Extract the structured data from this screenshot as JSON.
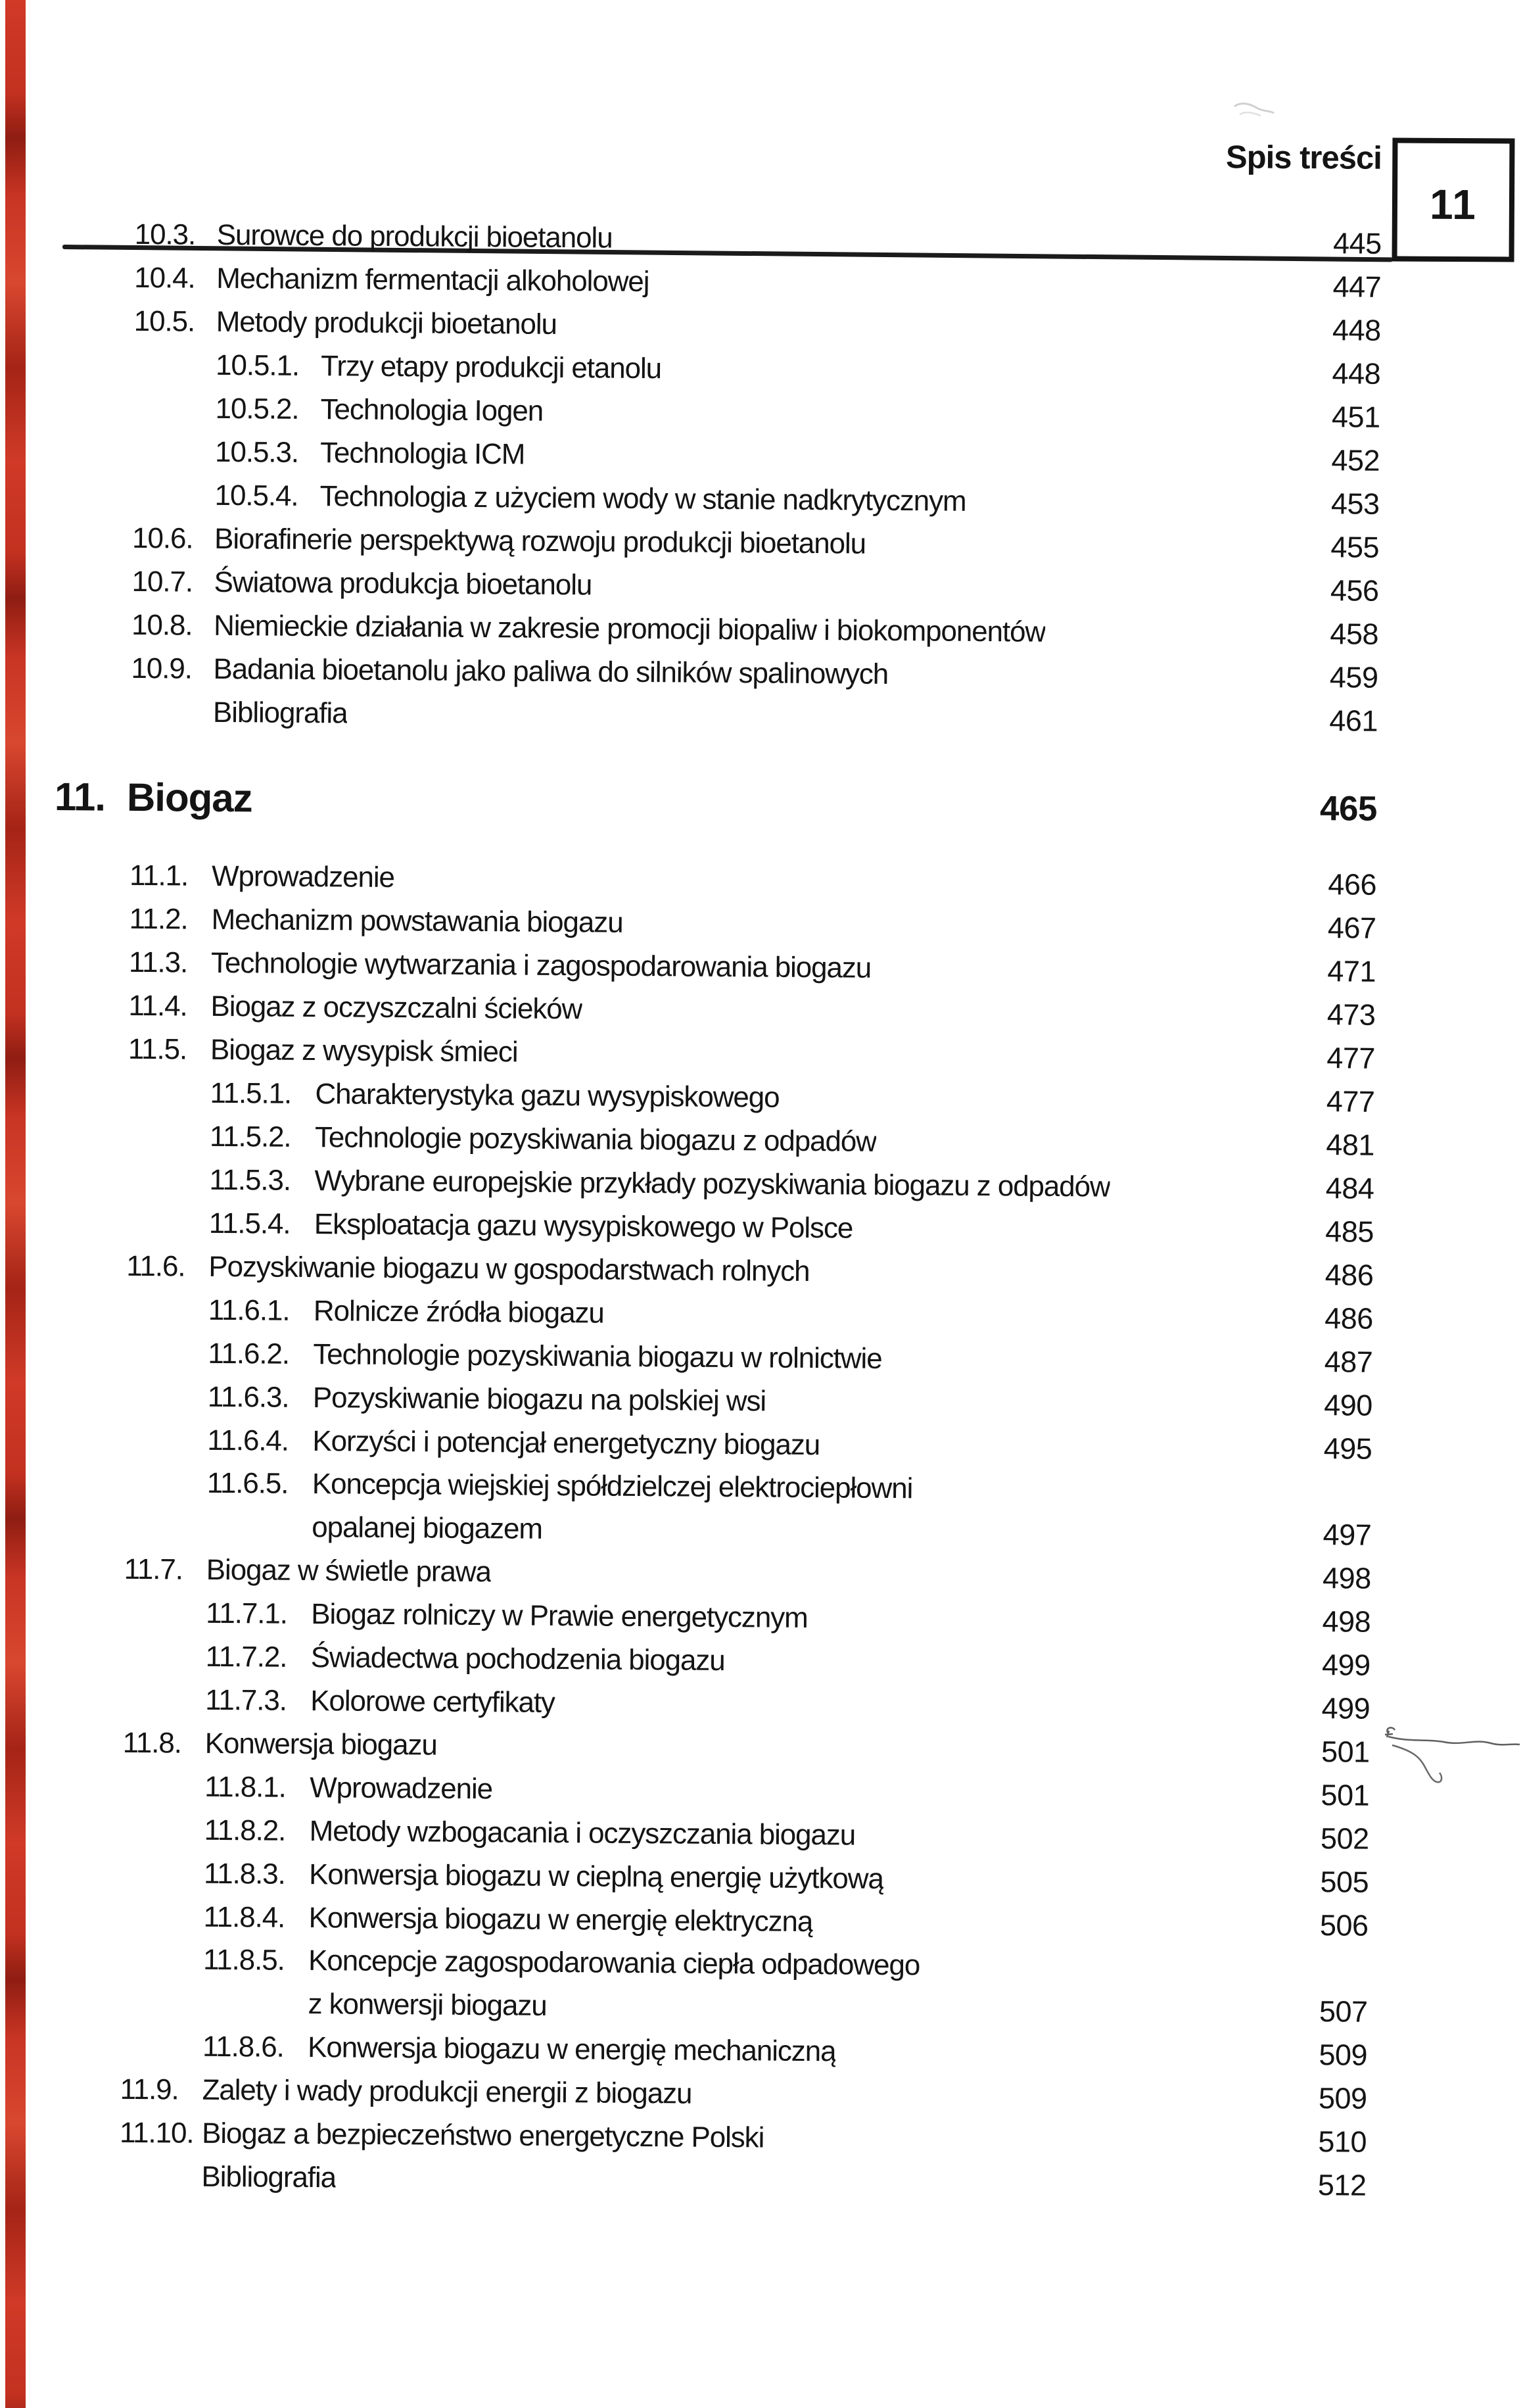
{
  "header": {
    "title": "Spis treści",
    "page_number": "11"
  },
  "decorations": {
    "edge_stripe_color": "#d03a27",
    "pencil_mark_color": "#6f6f6f"
  },
  "toc": {
    "entries": [
      {
        "level": "l2",
        "num": "10.3.",
        "label": "Surowce do produkcji bioetanolu",
        "page": "445"
      },
      {
        "level": "l2",
        "num": "10.4.",
        "label": "Mechanizm fermentacji alkoholowej",
        "page": "447"
      },
      {
        "level": "l2",
        "num": "10.5.",
        "label": "Metody produkcji bioetanolu",
        "page": "448"
      },
      {
        "level": "l3",
        "num": "10.5.1.",
        "label": "Trzy etapy produkcji etanolu",
        "page": "448"
      },
      {
        "level": "l3",
        "num": "10.5.2.",
        "label": "Technologia Iogen",
        "page": "451"
      },
      {
        "level": "l3",
        "num": "10.5.3.",
        "label": "Technologia ICM",
        "page": "452"
      },
      {
        "level": "l3",
        "num": "10.5.4.",
        "label": "Technologia z użyciem wody w stanie nadkrytycznym",
        "page": "453"
      },
      {
        "level": "l2",
        "num": "10.6.",
        "label": "Biorafinerie perspektywą rozwoju produkcji bioetanolu",
        "page": "455"
      },
      {
        "level": "l2",
        "num": "10.7.",
        "label": "Światowa produkcja bioetanolu",
        "page": "456"
      },
      {
        "level": "l2",
        "num": "10.8.",
        "label": "Niemieckie działania w zakresie promocji biopaliw i biokomponentów",
        "page": "458"
      },
      {
        "level": "l2",
        "num": "10.9.",
        "label": "Badania bioetanolu jako paliwa do silników spalinowych",
        "page": "459"
      },
      {
        "level": "bib",
        "num": "",
        "label": "Bibliografia",
        "page": "461"
      },
      {
        "level": "chapter",
        "num": "11.",
        "label": "Biogaz",
        "page": "465"
      },
      {
        "level": "l2",
        "num": "11.1.",
        "label": "Wprowadzenie",
        "page": "466"
      },
      {
        "level": "l2",
        "num": "11.2.",
        "label": "Mechanizm powstawania biogazu",
        "page": "467"
      },
      {
        "level": "l2",
        "num": "11.3.",
        "label": "Technologie wytwarzania i zagospodarowania biogazu",
        "page": "471"
      },
      {
        "level": "l2",
        "num": "11.4.",
        "label": "Biogaz z oczyszczalni ścieków",
        "page": "473"
      },
      {
        "level": "l2",
        "num": "11.5.",
        "label": "Biogaz z wysypisk śmieci",
        "page": "477"
      },
      {
        "level": "l3",
        "num": "11.5.1.",
        "label": "Charakterystyka gazu wysypiskowego",
        "page": "477"
      },
      {
        "level": "l3",
        "num": "11.5.2.",
        "label": "Technologie pozyskiwania biogazu z odpadów",
        "page": "481"
      },
      {
        "level": "l3",
        "num": "11.5.3.",
        "label": "Wybrane europejskie przykłady pozyskiwania biogazu z odpadów",
        "page": "484"
      },
      {
        "level": "l3",
        "num": "11.5.4.",
        "label": "Eksploatacja gazu wysypiskowego w Polsce",
        "page": "485"
      },
      {
        "level": "l2",
        "num": "11.6.",
        "label": "Pozyskiwanie biogazu w gospodarstwach rolnych",
        "page": "486"
      },
      {
        "level": "l3",
        "num": "11.6.1.",
        "label": "Rolnicze źródła biogazu",
        "page": "486"
      },
      {
        "level": "l3",
        "num": "11.6.2.",
        "label": "Technologie pozyskiwania biogazu w rolnictwie",
        "page": "487"
      },
      {
        "level": "l3",
        "num": "11.6.3.",
        "label": "Pozyskiwanie biogazu na polskiej wsi",
        "page": "490"
      },
      {
        "level": "l3",
        "num": "11.6.4.",
        "label": "Korzyści i potencjał energetyczny biogazu",
        "page": "495"
      },
      {
        "level": "l3",
        "num": "11.6.5.",
        "label": "Koncepcja wiejskiej spółdzielczej elektrociepłowni",
        "page": "",
        "continuation": "opalanej biogazem",
        "continuation_page": "497"
      },
      {
        "level": "l2",
        "num": "11.7.",
        "label": "Biogaz w świetle prawa",
        "page": "498"
      },
      {
        "level": "l3",
        "num": "11.7.1.",
        "label": "Biogaz rolniczy w Prawie energetycznym",
        "page": "498"
      },
      {
        "level": "l3",
        "num": "11.7.2.",
        "label": "Świadectwa pochodzenia biogazu",
        "page": "499"
      },
      {
        "level": "l3",
        "num": "11.7.3.",
        "label": "Kolorowe certyfikaty",
        "page": "499"
      },
      {
        "level": "l2",
        "num": "11.8.",
        "label": "Konwersja biogazu",
        "page": "501"
      },
      {
        "level": "l3",
        "num": "11.8.1.",
        "label": "Wprowadzenie",
        "page": "501"
      },
      {
        "level": "l3",
        "num": "11.8.2.",
        "label": "Metody wzbogacania i oczyszczania biogazu",
        "page": "502"
      },
      {
        "level": "l3",
        "num": "11.8.3.",
        "label": "Konwersja biogazu w cieplną energię użytkową",
        "page": "505"
      },
      {
        "level": "l3",
        "num": "11.8.4.",
        "label": "Konwersja biogazu w energię elektryczną",
        "page": "506"
      },
      {
        "level": "l3",
        "num": "11.8.5.",
        "label": "Koncepcje zagospodarowania ciepła odpadowego",
        "page": "",
        "continuation": "z konwersji biogazu",
        "continuation_page": "507"
      },
      {
        "level": "l3",
        "num": "11.8.6.",
        "label": "Konwersja biogazu w energię mechaniczną",
        "page": "509"
      },
      {
        "level": "l2",
        "num": "11.9.",
        "label": "Zalety i wady produkcji energii z biogazu",
        "page": "509"
      },
      {
        "level": "l2",
        "num": "11.10.",
        "label": "Biogaz a bezpieczeństwo energetyczne Polski",
        "page": "510"
      },
      {
        "level": "bib",
        "num": "",
        "label": "Bibliografia",
        "page": "512"
      }
    ]
  }
}
